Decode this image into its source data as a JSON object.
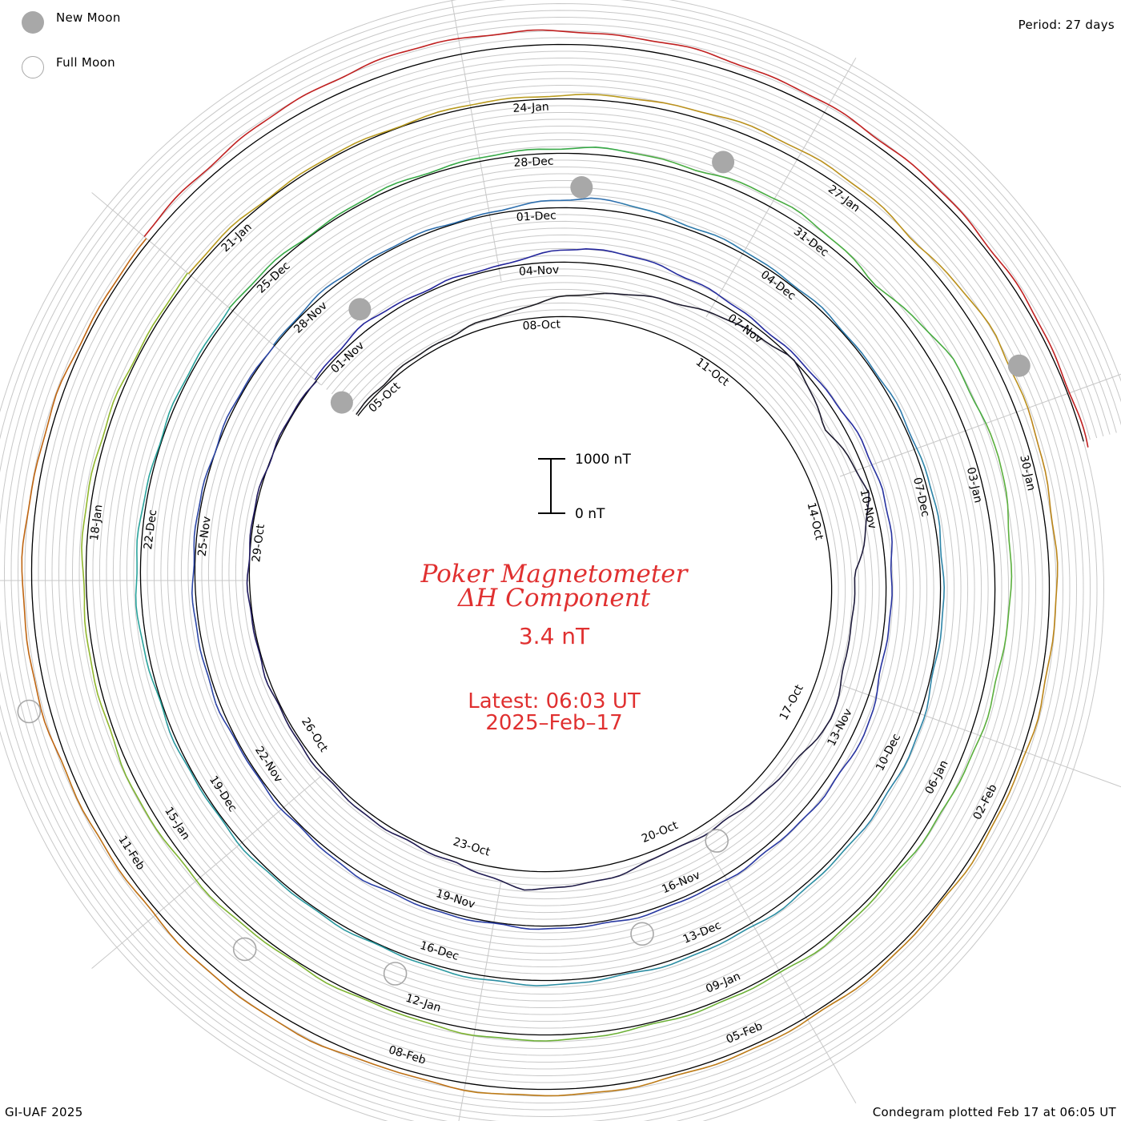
{
  "legend": {
    "new_moon_label": "New Moon",
    "full_moon_label": "Full Moon",
    "new_moon_color": "#a8a8a8",
    "full_moon_color": "#a8a8a8"
  },
  "header": {
    "period": "Period: 27 days"
  },
  "footer": {
    "credit": "GI-UAF 2025",
    "plotted": "Condegram plotted Feb 17 at 06:05 UT"
  },
  "center": {
    "title_line1": "Poker Magnetometer",
    "title_line2": "ΔH Component",
    "current_value": "3.4 nT",
    "latest_line1": "Latest: 06:03 UT",
    "latest_line2": "2025–Feb–17",
    "text_color": "#e03030"
  },
  "scale_bar": {
    "top_label": "1000 nT",
    "bottom_label": "0 nT"
  },
  "chart_data": {
    "type": "line",
    "subtype": "condegram-spiral",
    "period_days": 27,
    "units": "nT",
    "rotations": [
      {
        "color": "#1a1a1a",
        "color_end": "#201a66",
        "date_labels": [
          "05-Oct",
          "08-Oct",
          "11-Oct",
          "14-Oct",
          "17-Oct",
          "20-Oct",
          "23-Oct",
          "26-Oct",
          "29-Oct"
        ],
        "values_nT": [
          40,
          60,
          90,
          180,
          420,
          600,
          800,
          1000,
          700,
          950,
          450,
          380,
          520,
          300,
          180,
          120,
          260,
          330,
          80,
          70,
          60,
          40,
          30,
          25,
          20,
          15,
          10
        ]
      },
      {
        "color": "#22229a",
        "color_end": "#2e4aa8",
        "date_labels": [
          "01-Nov",
          "04-Nov",
          "07-Nov",
          "10-Nov",
          "13-Nov",
          "16-Nov",
          "19-Nov",
          "22-Nov",
          "25-Nov"
        ],
        "values_nT": [
          30,
          110,
          40,
          60,
          280,
          200,
          90,
          60,
          140,
          210,
          120,
          70,
          190,
          130,
          90,
          60,
          55,
          40,
          35,
          80,
          40,
          30,
          60,
          45,
          30,
          25,
          20
        ]
      },
      {
        "color": "#2e6ab0",
        "color_end": "#2aa89a",
        "date_labels": [
          "28-Nov",
          "01-Dec",
          "04-Dec",
          "07-Dec",
          "10-Dec",
          "13-Dec",
          "16-Dec",
          "19-Dec",
          "22-Dec"
        ],
        "values_nT": [
          20,
          60,
          30,
          40,
          200,
          80,
          50,
          30,
          40,
          70,
          60,
          40,
          110,
          70,
          80,
          60,
          50,
          90,
          40,
          30,
          50,
          30,
          40,
          100,
          40,
          30,
          70
        ]
      },
      {
        "color": "#2ea84a",
        "color_end": "#9ab82a",
        "date_labels": [
          "25-Dec",
          "28-Dec",
          "31-Dec",
          "03-Jan",
          "06-Jan",
          "09-Jan",
          "12-Jan",
          "15-Jan",
          "18-Jan"
        ],
        "values_nT": [
          80,
          30,
          50,
          60,
          120,
          90,
          200,
          40,
          350,
          420,
          300,
          210,
          150,
          60,
          90,
          40,
          60,
          120,
          50,
          40,
          80,
          110,
          70,
          60,
          90,
          40,
          60
        ]
      },
      {
        "color": "#b8a020",
        "color_end": "#c06010",
        "date_labels": [
          "21-Jan",
          "24-Jan",
          "27-Jan",
          "30-Jan",
          "02-Feb",
          "05-Feb",
          "08-Feb",
          "11-Feb"
        ],
        "values_nT": [
          60,
          40,
          30,
          50,
          80,
          150,
          200,
          120,
          260,
          180,
          140,
          90,
          60,
          50,
          70,
          60,
          90,
          130,
          80,
          150,
          100,
          80,
          140,
          180,
          110,
          70,
          50
        ]
      },
      {
        "color": "#c02020",
        "color_end": "#c02020",
        "date_labels": [],
        "values_nT": [
          120,
          180,
          260,
          300,
          240,
          200,
          160,
          120,
          90,
          60,
          40
        ]
      }
    ],
    "new_moon_dates": [
      "02-Oct",
      "01-Nov",
      "01-Dec",
      "30-Dec",
      "29-Jan"
    ],
    "full_moon_dates": [
      "17-Oct",
      "15-Nov",
      "15-Dec",
      "13-Jan",
      "12-Feb"
    ],
    "scale_reference_nT": [
      0,
      1000
    ]
  }
}
